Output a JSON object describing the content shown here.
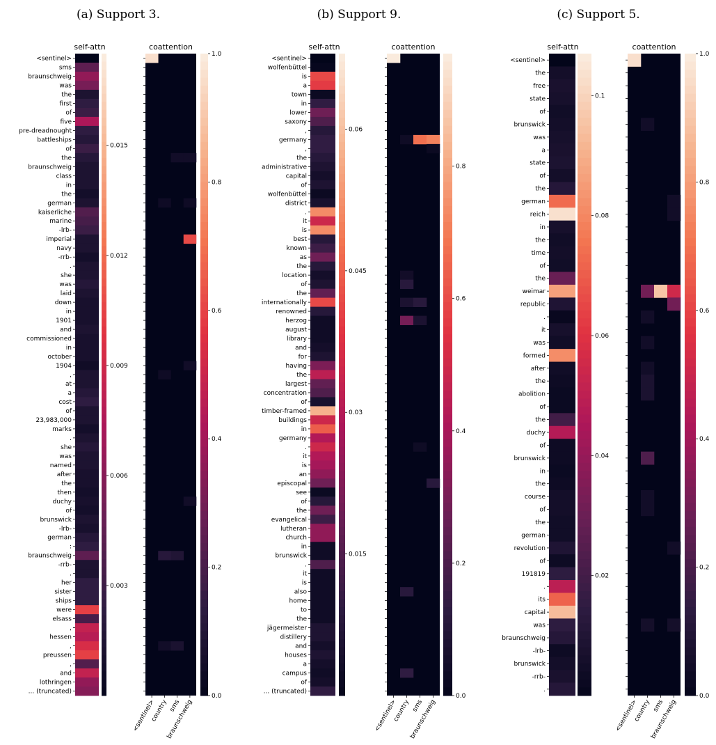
{
  "colors": {
    "scale": [
      "#03051a",
      "#2e1c41",
      "#6a1f55",
      "#ad1759",
      "#e13342",
      "#f37651",
      "#f6b48f",
      "#faebdd"
    ]
  },
  "chart_data": [
    {
      "type": "heatmap",
      "caption": "(a) Support 3.",
      "self_attn": {
        "title": "self-attn",
        "tokens": [
          "<sentinel>",
          "sms",
          "braunschweig",
          "was",
          "the",
          "first",
          "of",
          "five",
          "pre-dreadnought",
          "battleships",
          "of",
          "the",
          "braunschweig",
          "class",
          "in",
          "the",
          "german",
          "kaiserliche",
          "marine",
          "-lrb-",
          "imperial",
          "navy",
          "-rrb-",
          ".",
          "she",
          "was",
          "laid",
          "down",
          "in",
          "1901",
          "and",
          "commissioned",
          "in",
          "october",
          "1904",
          ",",
          "at",
          "a",
          "cost",
          "of",
          "23,983,000",
          "marks",
          ".",
          "she",
          "was",
          "named",
          "after",
          "the",
          "then",
          "duchy",
          "of",
          "brunswick",
          "-lrb-",
          "german",
          ":",
          "braunschweig",
          "-rrb-",
          ".",
          "her",
          "sister",
          "ships",
          "were",
          "elsass",
          ",",
          "hessen",
          ",",
          "preussen",
          ",",
          "and",
          "lothringen",
          "... (truncated)"
        ],
        "values": [
          0.0,
          0.0045,
          0.0065,
          0.0055,
          0.0015,
          0.0025,
          0.003,
          0.0075,
          0.0025,
          0.002,
          0.003,
          0.002,
          0.0015,
          0.0015,
          0.0015,
          0.001,
          0.0015,
          0.004,
          0.0035,
          0.003,
          0.0015,
          0.0015,
          0.001,
          0.0015,
          0.0015,
          0.002,
          0.0015,
          0.0012,
          0.0012,
          0.0012,
          0.0015,
          0.0012,
          0.0012,
          0.0012,
          0.0008,
          0.0015,
          0.0015,
          0.002,
          0.0025,
          0.0015,
          0.0015,
          0.001,
          0.0015,
          0.002,
          0.0015,
          0.0015,
          0.0012,
          0.0012,
          0.001,
          0.0012,
          0.001,
          0.0015,
          0.0012,
          0.002,
          0.0025,
          0.0045,
          0.0015,
          0.0015,
          0.0025,
          0.0025,
          0.0025,
          0.0105,
          0.0035,
          0.0085,
          0.008,
          0.0095,
          0.0105,
          0.004,
          0.0085,
          0.0065,
          0.006
        ],
        "colorbar_ticks": [
          0.003,
          0.006,
          0.009,
          0.012,
          0.015
        ],
        "vmin": 0.0,
        "vmax": 0.0175
      },
      "coattention": {
        "title": "coattention",
        "columns": [
          "<sentinel>",
          "country",
          "sms",
          "braunschweig"
        ],
        "highlights": [
          {
            "row": 0,
            "col": 0,
            "value": 0.97
          },
          {
            "row": 11,
            "col": 2,
            "value": 0.05
          },
          {
            "row": 11,
            "col": 3,
            "value": 0.05
          },
          {
            "row": 16,
            "col": 1,
            "value": 0.04
          },
          {
            "row": 16,
            "col": 3,
            "value": 0.04
          },
          {
            "row": 20,
            "col": 3,
            "value": 0.62
          },
          {
            "row": 34,
            "col": 3,
            "value": 0.05
          },
          {
            "row": 35,
            "col": 1,
            "value": 0.04
          },
          {
            "row": 49,
            "col": 3,
            "value": 0.05
          },
          {
            "row": 55,
            "col": 1,
            "value": 0.12
          },
          {
            "row": 55,
            "col": 2,
            "value": 0.1
          },
          {
            "row": 65,
            "col": 1,
            "value": 0.05
          },
          {
            "row": 65,
            "col": 2,
            "value": 0.08
          }
        ],
        "colorbar_ticks": [
          0.0,
          0.2,
          0.4,
          0.6,
          0.8,
          1.0
        ],
        "vmin": 0.0,
        "vmax": 1.0
      }
    },
    {
      "type": "heatmap",
      "caption": "(b) Support 9.",
      "self_attn": {
        "title": "self-attn",
        "tokens": [
          "<sentinel>",
          "wolfenbüttel",
          "is",
          "a",
          "town",
          "in",
          "lower",
          "saxony",
          ",",
          "germany",
          ",",
          "the",
          "administrative",
          "capital",
          "of",
          "wolfenbüttel",
          "district",
          ".",
          "it",
          "is",
          "best",
          "known",
          "as",
          "the",
          "location",
          "of",
          "the",
          "internationally",
          "renowned",
          "herzog",
          "august",
          "library",
          "and",
          "for",
          "having",
          "the",
          "largest",
          "concentration",
          "of",
          "timber-framed",
          "buildings",
          "in",
          "germany",
          ".",
          "it",
          "is",
          "an",
          "episcopal",
          "see",
          "of",
          "the",
          "evangelical",
          "lutheran",
          "church",
          "in",
          "brunswick",
          ".",
          "it",
          "is",
          "also",
          "home",
          "to",
          "the",
          "jägermeister",
          "distillery",
          "and",
          "houses",
          "a",
          "campus",
          "of",
          "... (truncated)"
        ],
        "values": [
          0.0,
          0.001,
          0.042,
          0.04,
          0.002,
          0.01,
          0.02,
          0.015,
          0.008,
          0.01,
          0.01,
          0.008,
          0.006,
          0.004,
          0.006,
          0.002,
          0.005,
          0.052,
          0.035,
          0.052,
          0.008,
          0.012,
          0.02,
          0.008,
          0.004,
          0.006,
          0.018,
          0.042,
          0.008,
          0.003,
          0.003,
          0.003,
          0.004,
          0.006,
          0.022,
          0.032,
          0.018,
          0.015,
          0.005,
          0.058,
          0.035,
          0.045,
          0.03,
          0.035,
          0.03,
          0.028,
          0.025,
          0.02,
          0.002,
          0.008,
          0.02,
          0.012,
          0.025,
          0.025,
          0.003,
          0.003,
          0.015,
          0.003,
          0.003,
          0.003,
          0.003,
          0.003,
          0.003,
          0.006,
          0.006,
          0.004,
          0.006,
          0.004,
          0.003,
          0.004,
          0.01
        ],
        "colorbar_ticks": [
          0.015,
          0.03,
          0.045,
          0.06
        ],
        "vmin": 0.0,
        "vmax": 0.068
      },
      "coattention": {
        "title": "coattention",
        "columns": [
          "<sentinel>",
          "country",
          "sms",
          "braunschweig"
        ],
        "highlights": [
          {
            "row": 0,
            "col": 0,
            "value": 0.97
          },
          {
            "row": 9,
            "col": 1,
            "value": 0.04
          },
          {
            "row": 9,
            "col": 2,
            "value": 0.68
          },
          {
            "row": 9,
            "col": 3,
            "value": 0.72
          },
          {
            "row": 10,
            "col": 3,
            "value": 0.03
          },
          {
            "row": 24,
            "col": 1,
            "value": 0.05
          },
          {
            "row": 25,
            "col": 1,
            "value": 0.12
          },
          {
            "row": 27,
            "col": 1,
            "value": 0.08
          },
          {
            "row": 27,
            "col": 2,
            "value": 0.12
          },
          {
            "row": 29,
            "col": 1,
            "value": 0.3
          },
          {
            "row": 29,
            "col": 2,
            "value": 0.08
          },
          {
            "row": 43,
            "col": 2,
            "value": 0.04
          },
          {
            "row": 47,
            "col": 3,
            "value": 0.12
          },
          {
            "row": 59,
            "col": 1,
            "value": 0.12
          },
          {
            "row": 68,
            "col": 1,
            "value": 0.14
          }
        ],
        "colorbar_ticks": [
          0.0,
          0.2,
          0.4,
          0.6,
          0.8
        ],
        "vmin": 0.0,
        "vmax": 0.97
      }
    },
    {
      "type": "heatmap",
      "caption": "(c) Support 5.",
      "self_attn": {
        "title": "self-attn",
        "tokens": [
          "<sentinel>",
          "the",
          "free",
          "state",
          "of",
          "brunswick",
          "was",
          "a",
          "state",
          "of",
          "the",
          "german",
          "reich",
          "in",
          "the",
          "time",
          "of",
          "the",
          "weimar",
          "republic",
          ".",
          "it",
          "was",
          "formed",
          "after",
          "the",
          "abolition",
          "of",
          "the",
          "duchy",
          "of",
          "brunswick",
          "in",
          "the",
          "course",
          "of",
          "the",
          "german",
          "revolution",
          "of",
          "191819",
          ".",
          "its",
          "capital",
          "was",
          "braunschweig",
          "-lrb-",
          "brunswick",
          "-rrb-",
          "."
        ],
        "values": [
          0.0,
          0.006,
          0.008,
          0.007,
          0.005,
          0.006,
          0.007,
          0.008,
          0.009,
          0.006,
          0.012,
          0.074,
          0.104,
          0.007,
          0.005,
          0.006,
          0.005,
          0.03,
          0.087,
          0.01,
          0.002,
          0.007,
          0.005,
          0.082,
          0.005,
          0.004,
          0.003,
          0.003,
          0.02,
          0.048,
          0.004,
          0.004,
          0.003,
          0.004,
          0.006,
          0.006,
          0.005,
          0.005,
          0.01,
          0.004,
          0.015,
          0.05,
          0.072,
          0.094,
          0.015,
          0.012,
          0.004,
          0.006,
          0.008,
          0.012
        ],
        "colorbar_ticks": [
          0.02,
          0.04,
          0.06,
          0.08,
          0.1
        ],
        "vmin": 0.0,
        "vmax": 0.107
      },
      "coattention": {
        "title": "coattention",
        "columns": [
          "<sentinel>",
          "country",
          "sms",
          "braunschweig"
        ],
        "highlights": [
          {
            "row": 0,
            "col": 0,
            "value": 0.97
          },
          {
            "row": 5,
            "col": 1,
            "value": 0.05
          },
          {
            "row": 11,
            "col": 3,
            "value": 0.05
          },
          {
            "row": 12,
            "col": 3,
            "value": 0.05
          },
          {
            "row": 18,
            "col": 1,
            "value": 0.3
          },
          {
            "row": 18,
            "col": 2,
            "value": 0.9
          },
          {
            "row": 18,
            "col": 3,
            "value": 0.52
          },
          {
            "row": 19,
            "col": 3,
            "value": 0.3
          },
          {
            "row": 20,
            "col": 1,
            "value": 0.05
          },
          {
            "row": 22,
            "col": 1,
            "value": 0.05
          },
          {
            "row": 24,
            "col": 1,
            "value": 0.05
          },
          {
            "row": 25,
            "col": 1,
            "value": 0.08
          },
          {
            "row": 26,
            "col": 1,
            "value": 0.08
          },
          {
            "row": 31,
            "col": 1,
            "value": 0.22
          },
          {
            "row": 34,
            "col": 1,
            "value": 0.05
          },
          {
            "row": 35,
            "col": 1,
            "value": 0.05
          },
          {
            "row": 38,
            "col": 3,
            "value": 0.05
          },
          {
            "row": 44,
            "col": 1,
            "value": 0.06
          },
          {
            "row": 44,
            "col": 3,
            "value": 0.06
          }
        ],
        "colorbar_ticks": [
          0.0,
          0.2,
          0.4,
          0.6,
          0.8,
          1.0
        ],
        "vmin": 0.0,
        "vmax": 1.0
      }
    }
  ]
}
